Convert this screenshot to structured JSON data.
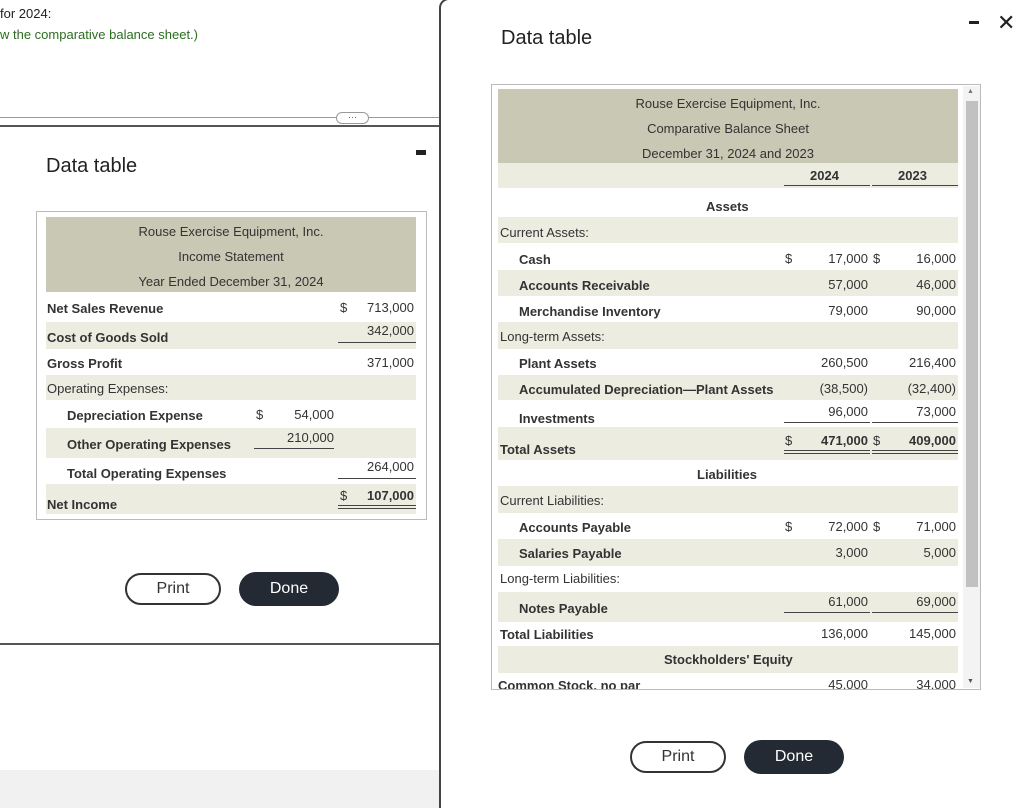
{
  "background": {
    "line1": "for 2024:",
    "line2": "w the comparative balance sheet.)"
  },
  "left_dialog": {
    "title": "Data table",
    "table": {
      "company": "Rouse Exercise Equipment, Inc.",
      "statement": "Income Statement",
      "period": "Year Ended December 31, 2024",
      "rows": {
        "net_sales": {
          "label": "Net Sales Revenue",
          "dollar": "$",
          "amount": "713,000"
        },
        "cogs": {
          "label": "Cost of Goods Sold",
          "amount": "342,000"
        },
        "gross_profit": {
          "label": "Gross Profit",
          "amount": "371,000"
        },
        "opex": {
          "label": "Operating Expenses:"
        },
        "depreciation": {
          "label": "Depreciation Expense",
          "dollar": "$",
          "amount": "54,000"
        },
        "other_opex": {
          "label": "Other Operating Expenses",
          "amount": "210,000"
        },
        "total_opex": {
          "label": "Total Operating Expenses",
          "amount": "264,000"
        },
        "net_income": {
          "label": "Net Income",
          "dollar": "$",
          "amount": "107,000"
        }
      }
    },
    "print_label": "Print",
    "done_label": "Done"
  },
  "right_dialog": {
    "title": "Data table",
    "table": {
      "company": "Rouse Exercise Equipment, Inc.",
      "statement": "Comparative Balance Sheet",
      "date": "December 31, 2024 and 2023",
      "col_2024": "2024",
      "col_2023": "2023",
      "assets_header": "Assets",
      "current_assets": "Current Assets:",
      "cash": {
        "label": "Cash",
        "d1": "$",
        "v2024": "17,000",
        "d2": "$",
        "v2023": "16,000"
      },
      "ar": {
        "label": "Accounts Receivable",
        "v2024": "57,000",
        "v2023": "46,000"
      },
      "inventory": {
        "label": "Merchandise Inventory",
        "v2024": "79,000",
        "v2023": "90,000"
      },
      "lt_assets": "Long-term Assets:",
      "plant": {
        "label": "Plant Assets",
        "v2024": "260,500",
        "v2023": "216,400"
      },
      "accum_dep": {
        "label": "Accumulated Depreciation—Plant Assets",
        "v2024": "(38,500)",
        "v2023": "(32,400)"
      },
      "investments": {
        "label": "Investments",
        "v2024": "96,000",
        "v2023": "73,000"
      },
      "total_assets": {
        "label": "Total Assets",
        "d1": "$",
        "v2024": "471,000",
        "d2": "$",
        "v2023": "409,000"
      },
      "liabilities_header": "Liabilities",
      "current_liabilities": "Current Liabilities:",
      "ap": {
        "label": "Accounts Payable",
        "d1": "$",
        "v2024": "72,000",
        "d2": "$",
        "v2023": "71,000"
      },
      "salaries": {
        "label": "Salaries Payable",
        "v2024": "3,000",
        "v2023": "5,000"
      },
      "lt_liabilities": "Long-term Liabilities:",
      "notes": {
        "label": "Notes Payable",
        "v2024": "61,000",
        "v2023": "69,000"
      },
      "total_liabilities": {
        "label": "Total Liabilities",
        "v2024": "136,000",
        "v2023": "145,000"
      },
      "equity_header": "Stockholders' Equity",
      "common_stock": {
        "label": "Common Stock, no par",
        "v2024": "45,000",
        "v2023": "34,000"
      }
    },
    "print_label": "Print",
    "done_label": "Done"
  }
}
